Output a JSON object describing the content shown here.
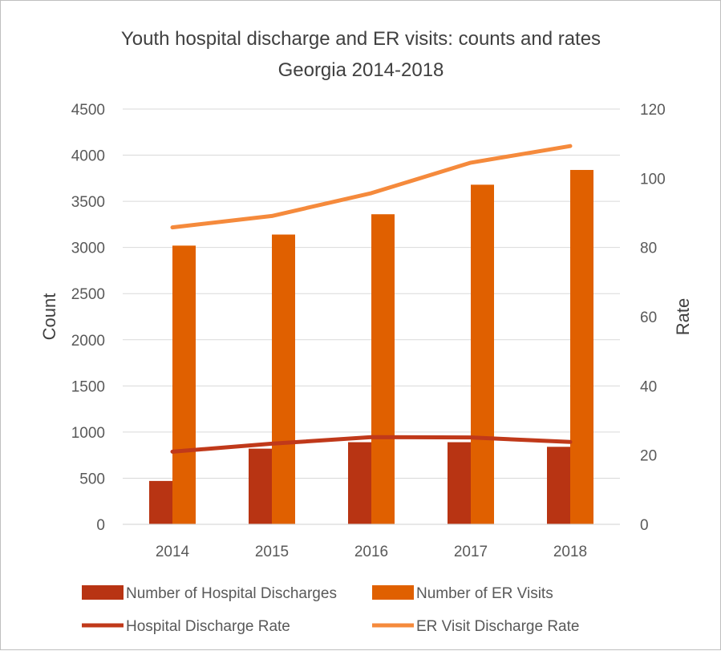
{
  "chart_data": {
    "type": "bar",
    "title_lines": [
      "Youth hospital discharge and ER visits: counts and rates",
      "Georgia 2014-2018"
    ],
    "xlabel": "",
    "ylabel": "Count",
    "y2label": "Rate",
    "categories": [
      "2014",
      "2015",
      "2016",
      "2017",
      "2018"
    ],
    "ylim": [
      0,
      4500
    ],
    "y_ticks": [
      0,
      500,
      1000,
      1500,
      2000,
      2500,
      3000,
      3500,
      4000,
      4500
    ],
    "y2lim": [
      0,
      120
    ],
    "y2_ticks": [
      0,
      20,
      40,
      60,
      80,
      100,
      120
    ],
    "grid": true,
    "legend_position": "bottom",
    "series": [
      {
        "name": "Number of Hospital Discharges",
        "type": "bar",
        "axis": "left",
        "color": "#b83413",
        "values": [
          470,
          820,
          890,
          890,
          840
        ]
      },
      {
        "name": "Number of ER Visits",
        "type": "bar",
        "axis": "left",
        "color": "#e06000",
        "values": [
          3020,
          3140,
          3360,
          3680,
          3840
        ]
      },
      {
        "name": "Hospital Discharge Rate",
        "type": "line",
        "axis": "right",
        "color": "#c0391a",
        "values": [
          21.0,
          23.3,
          25.2,
          25.1,
          23.8
        ]
      },
      {
        "name": "ER Visit Discharge Rate",
        "type": "line",
        "axis": "right",
        "color": "#f58a3c",
        "values": [
          85.8,
          89.1,
          95.7,
          104.5,
          109.3
        ]
      }
    ]
  }
}
